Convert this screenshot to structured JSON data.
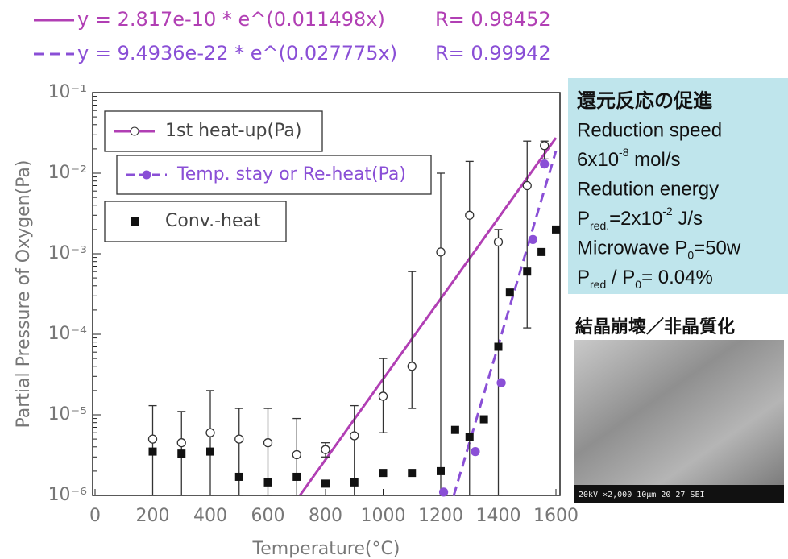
{
  "chart_data": {
    "type": "scatter",
    "x_label": "Temperature(°C)",
    "y_label": "Partial Pressure of Oxygen(Pa)",
    "xlim": [
      0,
      1600
    ],
    "xticks": [
      0,
      200,
      400,
      600,
      800,
      1000,
      1200,
      1400,
      1600
    ],
    "ylim": [
      1e-06,
      0.1
    ],
    "log_y": true,
    "yticks": [
      {
        "value": 1e-06,
        "label": "10⁻⁶"
      },
      {
        "value": 1e-05,
        "label": "10⁻⁵"
      },
      {
        "value": 0.0001,
        "label": "10⁻⁴"
      },
      {
        "value": 0.001,
        "label": "10⁻³"
      },
      {
        "value": 0.01,
        "label": "10⁻²"
      },
      {
        "value": 0.1,
        "label": "10⁻¹"
      }
    ],
    "series": [
      {
        "name": "1st heat-up(Pa)",
        "marker": "open-circle",
        "color": "#333333",
        "x": [
          200,
          300,
          400,
          500,
          600,
          700,
          800,
          900,
          1000,
          1100,
          1200,
          1300,
          1400,
          1500,
          1560
        ],
        "values": [
          5e-06,
          4.5e-06,
          6e-06,
          5e-06,
          4.5e-06,
          3.2e-06,
          3.7e-06,
          5.5e-06,
          1.7e-05,
          4e-05,
          0.00105,
          0.003,
          0.0014,
          0.007,
          0.022
        ],
        "error_upper": [
          1.3e-05,
          1.1e-05,
          2e-05,
          1.2e-05,
          1.2e-05,
          9e-06,
          4.5e-06,
          1.3e-05,
          5e-05,
          0.0006,
          0.01,
          0.014,
          0.002,
          0.025,
          0.025
        ],
        "error_lower": [
          1e-06,
          1e-06,
          1e-06,
          1e-06,
          1e-06,
          1e-06,
          3e-06,
          1e-06,
          6e-06,
          1.2e-05,
          1e-06,
          1e-06,
          1e-06,
          0.00012,
          0.015
        ]
      },
      {
        "name": "Temp. stay or Re-heat(Pa)",
        "marker": "filled-circle",
        "color": "#8a4fd6",
        "x": [
          1210,
          1320,
          1410,
          1520,
          1560
        ],
        "values": [
          1.1e-06,
          3.5e-06,
          2.5e-05,
          0.0015,
          0.013
        ]
      },
      {
        "name": "Conv.-heat",
        "marker": "square",
        "color": "#111111",
        "x": [
          200,
          300,
          400,
          500,
          600,
          700,
          800,
          900,
          1000,
          1100,
          1200,
          1250,
          1300,
          1350,
          1400,
          1440,
          1500,
          1550,
          1600
        ],
        "values": [
          3.5e-06,
          3.3e-06,
          3.5e-06,
          1.7e-06,
          1.45e-06,
          1.7e-06,
          1.4e-06,
          1.45e-06,
          1.9e-06,
          1.9e-06,
          2e-06,
          6.5e-06,
          5.3e-06,
          8.8e-06,
          7e-05,
          0.00033,
          0.0006,
          0.00105,
          0.002
        ]
      }
    ],
    "fits": [
      {
        "equation": "y = 2.817e-10 * e^(0.011498x)",
        "r_label": "R= 0.98452",
        "a": 2.817e-10,
        "b": 0.011498,
        "x_range": [
          711,
          1600
        ],
        "color": "#b13fb4",
        "dash": false
      },
      {
        "equation": "y = 9.4936e-22 * e^(0.027775x)",
        "r_label": "R= 0.99942",
        "a": 9.4936e-22,
        "b": 0.027775,
        "x_range": [
          1245,
          1600
        ],
        "color": "#8a4fd6",
        "dash": true
      }
    ]
  },
  "side_panel": {
    "lines": [
      [
        {
          "text": "還元反応の促進"
        }
      ],
      [
        {
          "text": "Reduction speed"
        }
      ],
      [
        {
          "text": "6x10"
        },
        {
          "sup": "-8"
        },
        {
          "text": " mol/s"
        }
      ],
      [
        {
          "text": "Redution energy"
        }
      ],
      [
        {
          "text": "P"
        },
        {
          "sub": "red."
        },
        {
          "text": "=2x10"
        },
        {
          "sup": "-2"
        },
        {
          "text": " J/s"
        }
      ],
      [
        {
          "text": "Microwave P"
        },
        {
          "sub": "0"
        },
        {
          "text": "=50w"
        }
      ],
      [
        {
          "text": "P"
        },
        {
          "sub": "red"
        },
        {
          "text": " / P"
        },
        {
          "sub": "0"
        },
        {
          "text": "= 0.04%"
        }
      ]
    ],
    "image_title": "結晶崩壊／非晶質化",
    "image_caption": "20kV  ×2,000  10μm    20 27 SEI"
  }
}
